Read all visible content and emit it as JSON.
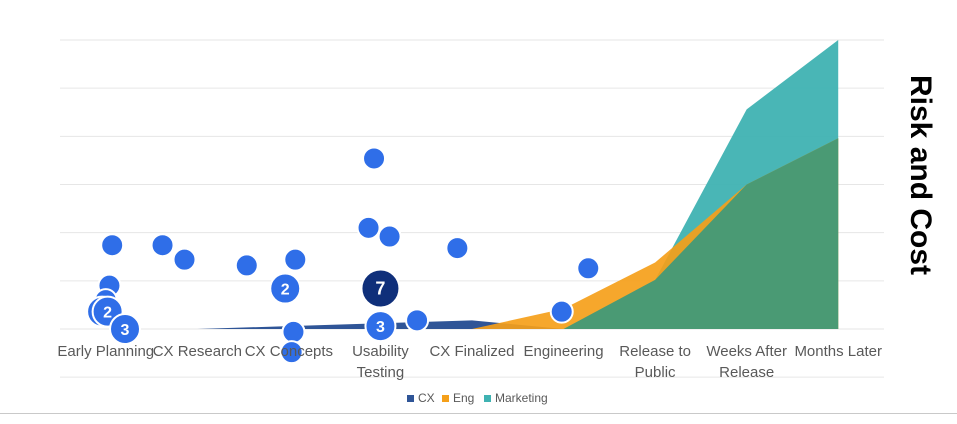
{
  "colors": {
    "CX": "#2f5597",
    "Eng": "#f5a01a",
    "Marketing": "#3fb2b2",
    "overlap": "#4a9a74",
    "bubble": "#2f6ee8",
    "bubble_dark": "#0f2f7a",
    "bubble_border": "#ffffff",
    "grid": "#e6e6e6",
    "axis_text": "#595959",
    "ylabel": "#000000"
  },
  "chart_data": {
    "type": "area",
    "title": "",
    "ylabel": "Risk and Cost",
    "categories": [
      "Early Planning",
      "CX Research",
      "CX Concepts",
      "Usability Testing",
      "CX Finalized",
      "Engineering",
      "Release to Public",
      "Weeks After Release",
      "Months Later"
    ],
    "ylim": [
      0,
      100
    ],
    "grid": true,
    "legend_position": "bottom",
    "series": [
      {
        "name": "CX",
        "values": [
          0,
          0,
          1,
          2,
          3,
          0,
          0,
          0,
          0
        ]
      },
      {
        "name": "Eng",
        "values": [
          0,
          0,
          0,
          0,
          0,
          7,
          23,
          50,
          66
        ]
      },
      {
        "name": "Marketing",
        "values": [
          0,
          0,
          0,
          0,
          0,
          0,
          17,
          76,
          100
        ]
      }
    ],
    "bubbles": [
      {
        "x": 0.07,
        "y": 29,
        "label": ""
      },
      {
        "x": 0.04,
        "y": 15,
        "label": ""
      },
      {
        "x": 0.0,
        "y": 10,
        "label": ""
      },
      {
        "x": -0.04,
        "y": 6,
        "label": "2"
      },
      {
        "x": 0.62,
        "y": 29,
        "label": ""
      },
      {
        "x": 0.86,
        "y": 24,
        "label": ""
      },
      {
        "x": 0.02,
        "y": 6,
        "label": "2"
      },
      {
        "x": 0.21,
        "y": 0,
        "label": "3"
      },
      {
        "x": 1.54,
        "y": 22,
        "label": ""
      },
      {
        "x": 2.07,
        "y": 24,
        "label": ""
      },
      {
        "x": 1.96,
        "y": 14,
        "label": "2"
      },
      {
        "x": 2.05,
        "y": -1,
        "label": ""
      },
      {
        "x": 2.03,
        "y": -8,
        "label": ""
      },
      {
        "x": 2.93,
        "y": 59,
        "label": ""
      },
      {
        "x": 2.87,
        "y": 35,
        "label": ""
      },
      {
        "x": 3.1,
        "y": 32,
        "label": ""
      },
      {
        "x": 3.0,
        "y": 14,
        "label": "7",
        "dark": true
      },
      {
        "x": 3.0,
        "y": 1,
        "label": "3"
      },
      {
        "x": 3.4,
        "y": 3,
        "label": ""
      },
      {
        "x": 3.84,
        "y": 28,
        "label": ""
      },
      {
        "x": 5.27,
        "y": 21,
        "label": ""
      },
      {
        "x": 4.98,
        "y": 6,
        "label": ""
      }
    ]
  }
}
